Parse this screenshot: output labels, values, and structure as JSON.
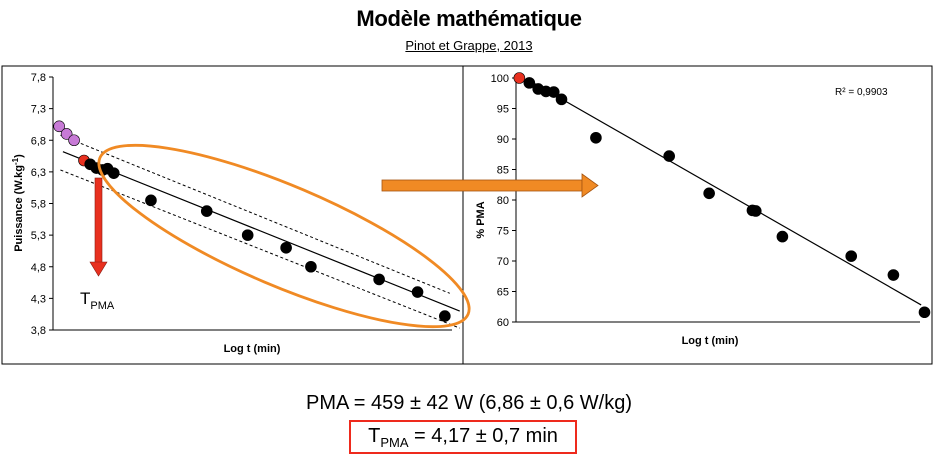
{
  "title": "Modèle mathématique",
  "subtitle": "Pinot et Grappe, 2013",
  "chart_data": [
    {
      "type": "scatter",
      "xlabel": "Log t (min)",
      "ylabel": "Puissance (W.kg-1)",
      "ylabel_main": "Puissance (W.kg",
      "ylabel_sup": "-1",
      "ylabel_end": ")",
      "ylim": [
        3.8,
        7.8
      ],
      "yticks": [
        "7,8",
        "7,3",
        "6,8",
        "6,3",
        "5,8",
        "5,3",
        "4,8",
        "4,3",
        "3,8"
      ],
      "grid": false,
      "series": [
        {
          "color": "#c77ad6",
          "points": [
            [
              0.5,
              7.02
            ],
            [
              1.1,
              6.9
            ],
            [
              1.7,
              6.8
            ]
          ]
        },
        {
          "color": "#e8301f",
          "points": [
            [
              2.5,
              6.48
            ]
          ]
        },
        {
          "color": "#000000",
          "points": [
            [
              3.0,
              6.42
            ],
            [
              3.5,
              6.36
            ],
            [
              4.0,
              6.33
            ],
            [
              4.4,
              6.35
            ],
            [
              4.9,
              6.28
            ],
            [
              7.9,
              5.85
            ],
            [
              12.4,
              5.68
            ],
            [
              15.7,
              5.3
            ],
            [
              18.8,
              5.1
            ],
            [
              20.8,
              4.8
            ],
            [
              26.3,
              4.6
            ],
            [
              29.4,
              4.4
            ],
            [
              31.6,
              4.02
            ]
          ]
        }
      ],
      "regression": {
        "from": [
          0.8,
          6.62
        ],
        "to": [
          32.8,
          4.1
        ]
      },
      "confidence_band": {
        "upper": [
          [
            0.6,
            6.88
          ],
          [
            32.0,
            4.38
          ]
        ],
        "lower": [
          [
            0.6,
            6.33
          ],
          [
            32.8,
            3.83
          ]
        ]
      },
      "annotation": {
        "label": "T",
        "sub": "PMA"
      }
    },
    {
      "type": "scatter",
      "xlabel": "Log t (min)",
      "ylabel": "% PMA",
      "ylim": [
        60,
        100
      ],
      "yticks": [
        "100",
        "95",
        "90",
        "85",
        "80",
        "75",
        "70",
        "65",
        "60"
      ],
      "grid": false,
      "annotation": "R² = 0,9903",
      "series": [
        {
          "color": "#e8301f",
          "points": [
            [
              0.3,
              100
            ]
          ]
        },
        {
          "color": "#000000",
          "points": [
            [
              1.2,
              99.2
            ],
            [
              2.0,
              98.2
            ],
            [
              2.7,
              97.8
            ],
            [
              3.4,
              97.7
            ],
            [
              4.1,
              96.5
            ],
            [
              7.2,
              90.2
            ],
            [
              13.8,
              87.2
            ],
            [
              17.4,
              81.1
            ],
            [
              21.3,
              78.3
            ],
            [
              21.6,
              78.2
            ],
            [
              24.0,
              74.0
            ],
            [
              30.2,
              70.8
            ],
            [
              34.0,
              67.7
            ],
            [
              36.8,
              61.6
            ]
          ]
        }
      ],
      "regression": {
        "from": [
          1.0,
          99.8
        ],
        "to": [
          36.5,
          62.8
        ]
      }
    }
  ],
  "pma": {
    "text": "PMA = 459 ± 42 W (6,86 ± 0,6 W/kg)",
    "tpma_label": "T",
    "tpma_sub": "PMA",
    "tpma_value": " = 4,17 ± 0,7 min"
  }
}
